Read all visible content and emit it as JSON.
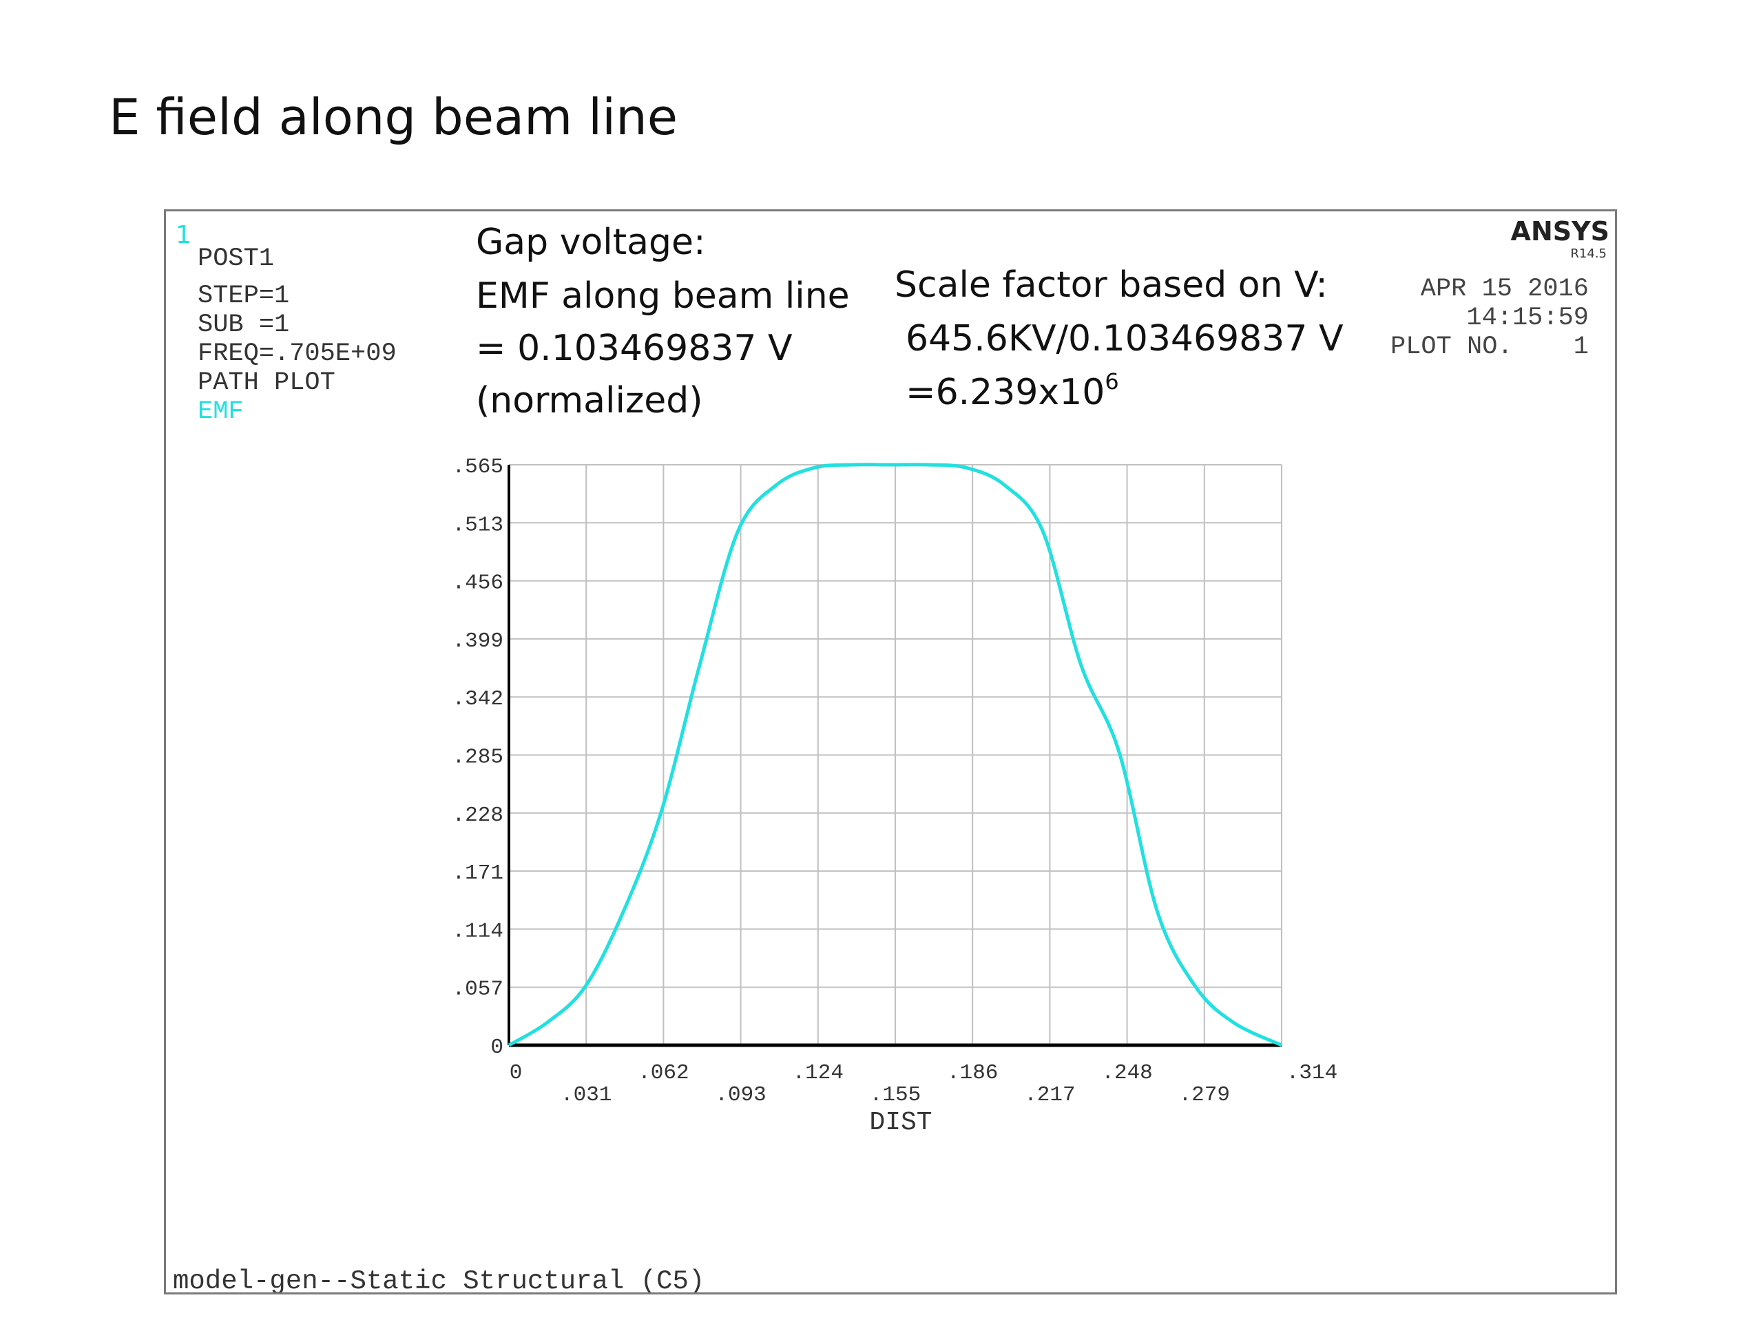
{
  "slide_title": "E field along beam line",
  "ansys": {
    "window_number": "1",
    "logo": "ANSYS",
    "release": "R14.5",
    "info_lines": [
      "POST1",
      "STEP=1",
      "SUB =1",
      "FREQ=.705E+09",
      "PATH PLOT"
    ],
    "item_label": "EMF",
    "date": "APR 15 2016",
    "time": "14:15:59",
    "plot_no_label": "PLOT NO.",
    "plot_no_value": "1",
    "footer": "model-gen--Static Structural (C5)"
  },
  "annotations": {
    "gap_voltage": [
      "Gap voltage:",
      "EMF along beam line",
      "= 0.103469837 V",
      "(normalized)"
    ],
    "scale_factor_line1": "Scale factor based on V:",
    "scale_factor_line2": "645.6KV/0.103469837 V",
    "scale_factor_line3_base": "=6.239x10",
    "scale_factor_line3_exp": "6"
  },
  "colors": {
    "curve": "#22e0e0",
    "emf_label": "#22e0e0",
    "window_number": "#22e0e0",
    "grid": "#c0c0c0",
    "axis": "#000000"
  },
  "chart_data": {
    "type": "line",
    "xlabel": "DIST",
    "xlim": [
      0,
      0.314
    ],
    "ylim": [
      0,
      0.565
    ],
    "x_ticks": [
      ".031",
      ".062",
      ".093",
      ".124",
      ".155",
      ".186",
      ".217",
      ".248",
      ".279",
      ".314"
    ],
    "x_zero_label": "0",
    "y_ticks": [
      ".565",
      ".513",
      ".456",
      ".399",
      ".342",
      ".285",
      ".228",
      ".171",
      ".114",
      ".057",
      "0"
    ],
    "series": [
      {
        "color": "#22e0e0",
        "x": [
          0,
          0.0155,
          0.031,
          0.0465,
          0.062,
          0.0775,
          0.093,
          0.1085,
          0.124,
          0.1395,
          0.155,
          0.1705,
          0.186,
          0.2015,
          0.217,
          0.2325,
          0.248,
          0.2635,
          0.279,
          0.2945,
          0.314
        ],
        "y": [
          0,
          0.022,
          0.057,
          0.13,
          0.228,
          0.37,
          0.5,
          0.545,
          0.562,
          0.565,
          0.565,
          0.565,
          0.562,
          0.545,
          0.5,
          0.37,
          0.285,
          0.13,
          0.057,
          0.022,
          0
        ]
      }
    ]
  }
}
